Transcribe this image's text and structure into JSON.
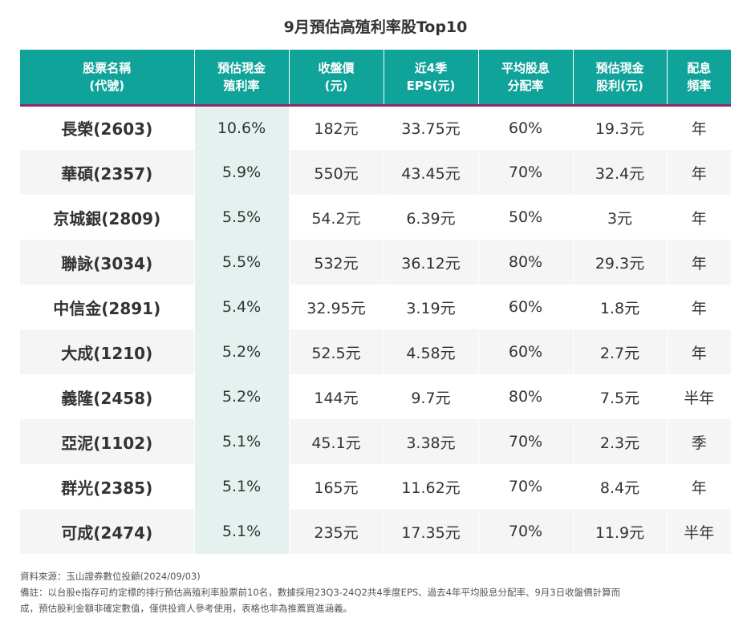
{
  "title": "9月預估高殖利率股Top10",
  "chart_data": {
    "type": "table",
    "title": "9月預估高殖利率股Top10",
    "columns": [
      [
        "股票名稱",
        "(代號)"
      ],
      [
        "預估現金",
        "殖利率"
      ],
      [
        "收盤價",
        "(元)"
      ],
      [
        "近4季",
        "EPS(元)"
      ],
      [
        "平均股息",
        "分配率"
      ],
      [
        "預估現金",
        "股利(元)"
      ],
      [
        "配息",
        "頻率"
      ]
    ],
    "rows": [
      [
        "長榮(2603)",
        "10.6%",
        "182元",
        "33.75元",
        "60%",
        "19.3元",
        "年"
      ],
      [
        "華碩(2357)",
        "5.9%",
        "550元",
        "43.45元",
        "70%",
        "32.4元",
        "年"
      ],
      [
        "京城銀(2809)",
        "5.5%",
        "54.2元",
        "6.39元",
        "50%",
        "3元",
        "年"
      ],
      [
        "聯詠(3034)",
        "5.5%",
        "532元",
        "36.12元",
        "80%",
        "29.3元",
        "年"
      ],
      [
        "中信金(2891)",
        "5.4%",
        "32.95元",
        "3.19元",
        "60%",
        "1.8元",
        "年"
      ],
      [
        "大成(1210)",
        "5.2%",
        "52.5元",
        "4.58元",
        "60%",
        "2.7元",
        "年"
      ],
      [
        "義隆(2458)",
        "5.2%",
        "144元",
        "9.7元",
        "80%",
        "7.5元",
        "半年"
      ],
      [
        "亞泥(1102)",
        "5.1%",
        "45.1元",
        "3.38元",
        "70%",
        "2.3元",
        "季"
      ],
      [
        "群光(2385)",
        "5.1%",
        "165元",
        "11.62元",
        "70%",
        "8.4元",
        "年"
      ],
      [
        "可成(2474)",
        "5.1%",
        "235元",
        "17.35元",
        "70%",
        "11.9元",
        "半年"
      ]
    ],
    "highlight_column": 1
  },
  "notes": {
    "source": "資料來源：玉山證券數位投顧(2024/09/03)",
    "remark_line1": "備註：以台股e指存可約定標的排行預估高殖利率股票前10名，數據採用23Q3-24Q2共4季度EPS、過去4年平均股息分配率、9月3日收盤價計算而",
    "remark_line2": "成，預估股利金額非確定數值，僅供投資人參考使用，表格也非為推薦買進涵義。"
  },
  "colors": {
    "header_bg": "#0fa39a",
    "header_border": "#8c2a6a",
    "highlight_bg": "#e4f1ef",
    "stripe_bg": "#f5f5f5"
  }
}
